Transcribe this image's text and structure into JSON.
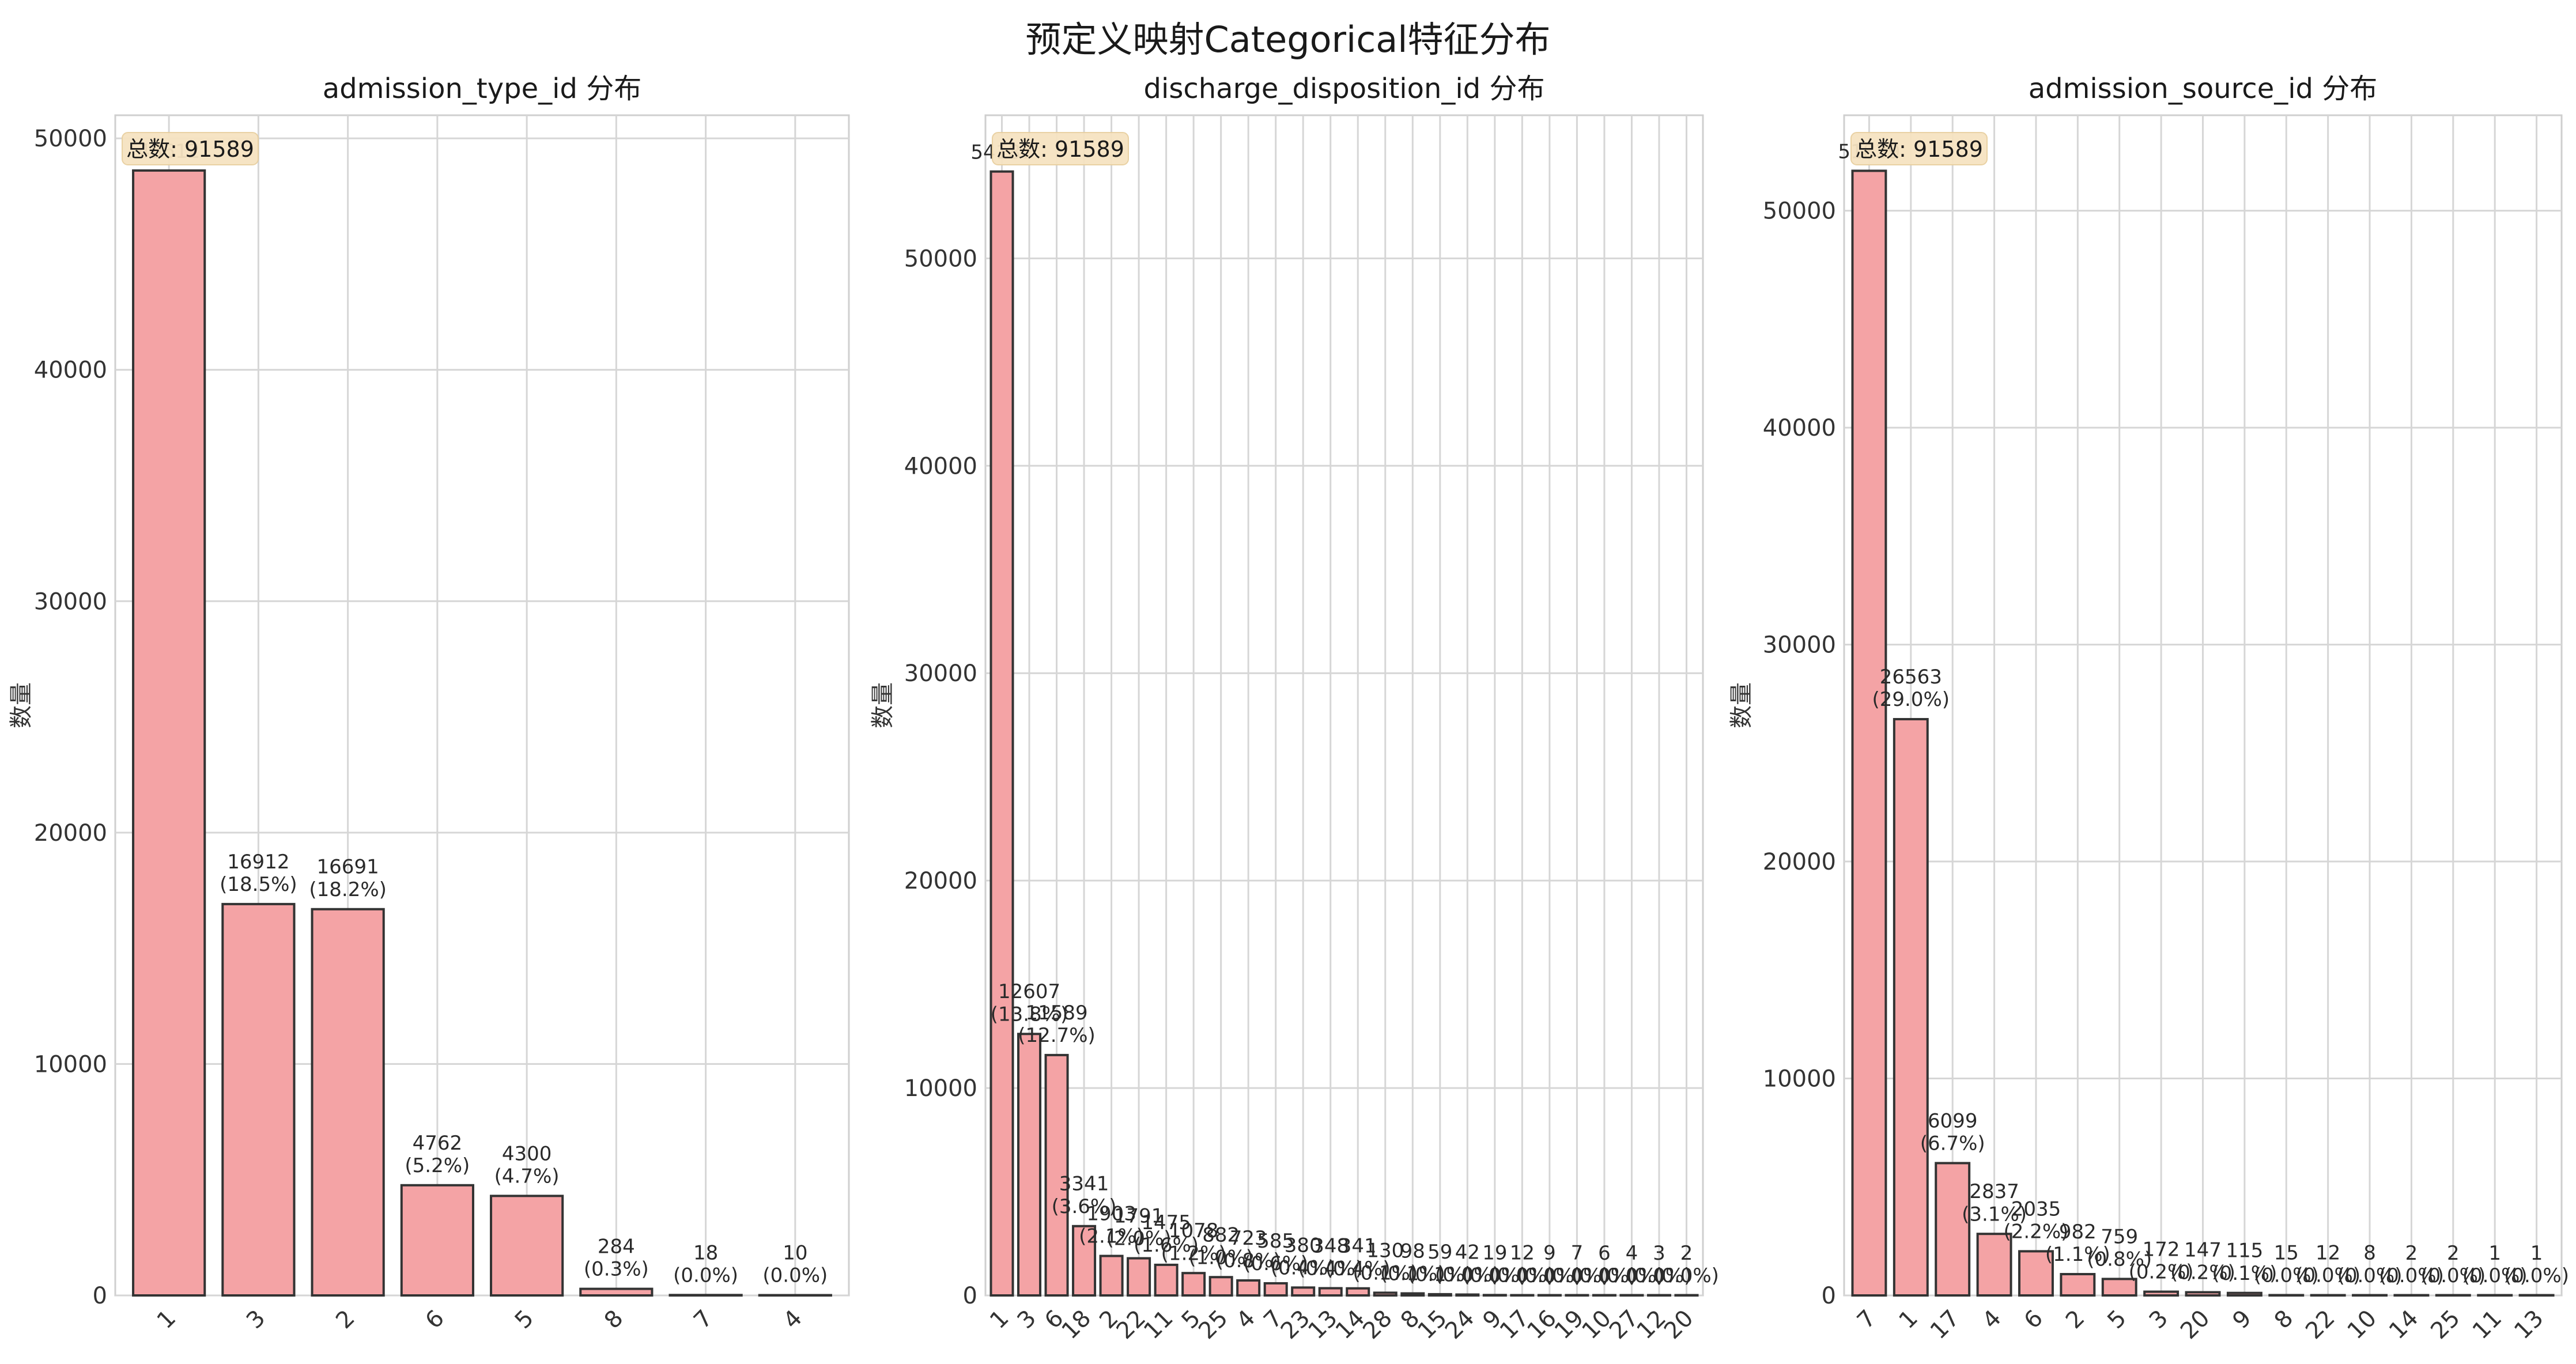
{
  "figure": {
    "suptitle": "预定义映射Categorical特征分布",
    "bar_color": "#f4a3a5",
    "bar_edge_color": "#333333",
    "total_box_color": "#f6e3c1"
  },
  "chart_data": [
    {
      "type": "bar",
      "title": "admission_type_id 分布",
      "xlabel": "",
      "ylabel": "数量",
      "ylim": [
        0,
        51000
      ],
      "yticks": [
        0,
        10000,
        20000,
        30000,
        40000,
        50000
      ],
      "grid": true,
      "total_text": "总数: 91589",
      "categories": [
        "1",
        "3",
        "2",
        "6",
        "5",
        "8",
        "7",
        "4"
      ],
      "values": [
        48612,
        16912,
        16691,
        4762,
        4300,
        284,
        18,
        10
      ],
      "labels": [
        "48612",
        "16912\n(18.5%)",
        "16691\n(18.2%)",
        "4762\n(5.2%)",
        "4300\n(4.7%)",
        "284\n(0.3%)",
        "18\n(0.0%)",
        "10\n(0.0%)"
      ]
    },
    {
      "type": "bar",
      "title": "discharge_disposition_id 分布",
      "xlabel": "",
      "ylabel": "数量",
      "ylim": [
        0,
        56900
      ],
      "yticks": [
        0,
        10000,
        20000,
        30000,
        40000,
        50000
      ],
      "grid": true,
      "total_text": "总数: 91589",
      "categories": [
        "1",
        "3",
        "6",
        "18",
        "2",
        "22",
        "11",
        "5",
        "25",
        "4",
        "7",
        "23",
        "13",
        "14",
        "28",
        "8",
        "15",
        "24",
        "9",
        "17",
        "16",
        "19",
        "10",
        "27",
        "12",
        "20"
      ],
      "values": [
        54187,
        12607,
        11589,
        3341,
        1903,
        1791,
        1475,
        1078,
        882,
        723,
        585,
        380,
        348,
        341,
        130,
        98,
        59,
        42,
        19,
        12,
        9,
        7,
        6,
        4,
        3,
        2
      ],
      "labels": [
        "54187",
        "12607\n(13.8%)",
        "11589\n(12.7%)",
        "3341\n(3.6%)",
        "1903\n(2.1%)",
        "1791\n(2.0%)",
        "1475\n(1.6%)",
        "1078\n(1.2%)",
        "882\n(1.0%)",
        "723\n(0.8%)",
        "585\n(0.6%)",
        "380\n(0.4%)",
        "348\n(0.4%)",
        "341\n(0.4%)",
        "130\n(0.1%)",
        "98\n(0.1%)",
        "59\n(0.1%)",
        "42\n(0.0%)",
        "19\n(0.0%)",
        "12\n(0.0%)",
        "9\n(0.0%)",
        "7\n(0.0%)",
        "6\n(0.0%)",
        "4\n(0.0%)",
        "3\n(0.0%)",
        "2\n(0.0%)"
      ]
    },
    {
      "type": "bar",
      "title": "admission_source_id 分布",
      "xlabel": "",
      "ylabel": "数量",
      "ylim": [
        0,
        54400
      ],
      "yticks": [
        0,
        10000,
        20000,
        30000,
        40000,
        50000
      ],
      "grid": true,
      "total_text": "总数: 91589",
      "categories": [
        "7",
        "1",
        "17",
        "4",
        "6",
        "2",
        "5",
        "3",
        "20",
        "9",
        "8",
        "22",
        "10",
        "14",
        "25",
        "11",
        "13"
      ],
      "values": [
        51839,
        26563,
        6099,
        2837,
        2035,
        982,
        759,
        172,
        147,
        115,
        15,
        12,
        8,
        2,
        2,
        1,
        1
      ],
      "labels": [
        "51839",
        "26563\n(29.0%)",
        "6099\n(6.7%)",
        "2837\n(3.1%)",
        "2035\n(2.2%)",
        "982\n(1.1%)",
        "759\n(0.8%)",
        "172\n(0.2%)",
        "147\n(0.2%)",
        "115\n(0.1%)",
        "15\n(0.0%)",
        "12\n(0.0%)",
        "8\n(0.0%)",
        "2\n(0.0%)",
        "2\n(0.0%)",
        "1\n(0.0%)",
        "1\n(0.0%)"
      ]
    }
  ]
}
